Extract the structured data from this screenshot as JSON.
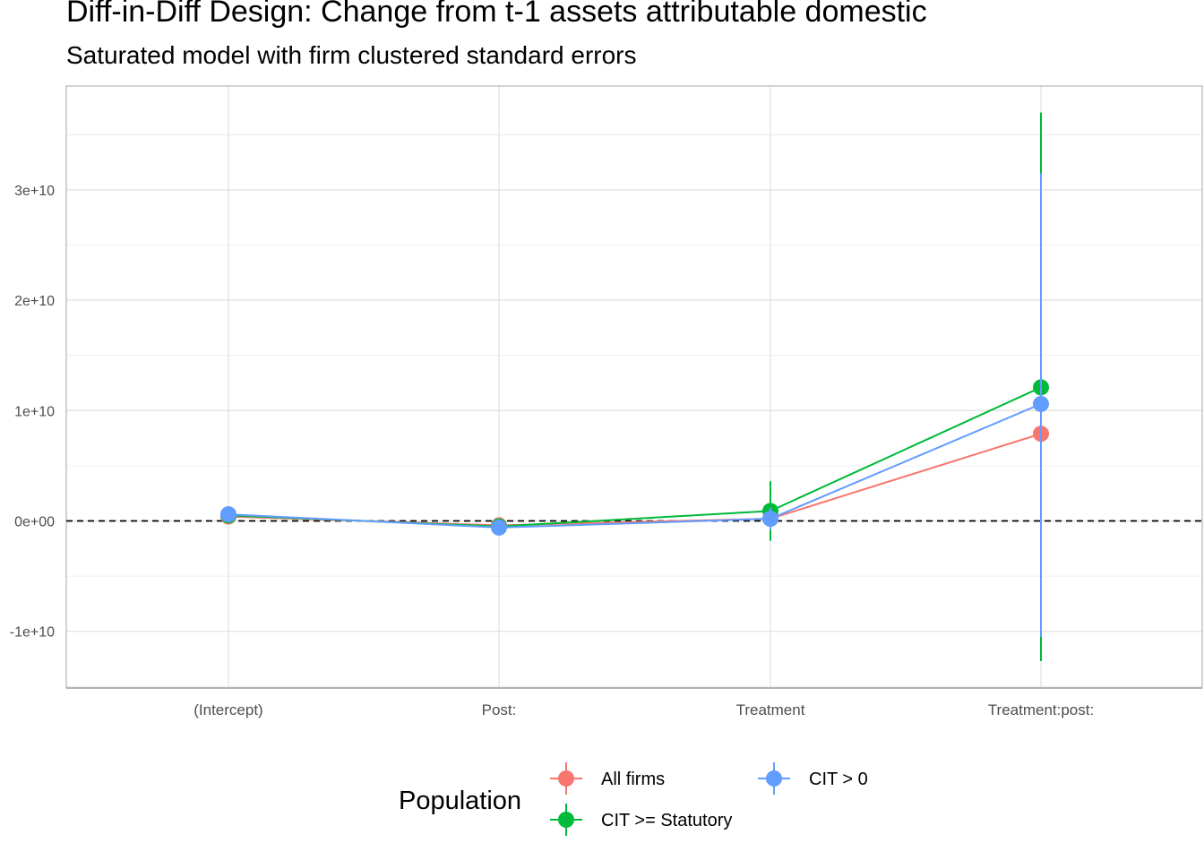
{
  "chart_data": {
    "type": "scatter",
    "title": "Diff-in-Diff Design: Change from t-1 assets attributable domestic",
    "subtitle": "Saturated model with firm clustered standard errors",
    "xlabel": "",
    "ylabel": "",
    "categories": [
      "(Intercept)",
      "Post:",
      "Treatment",
      "Treatment:post:"
    ],
    "y_ticks": [
      -10000000000,
      0,
      10000000000,
      20000000000,
      30000000000
    ],
    "y_tick_labels": [
      "-1e+10",
      "0e+00",
      "1e+10",
      "2e+10",
      "3e+10"
    ],
    "ylim": [
      -15000000000,
      39000000000
    ],
    "reference_line": 0,
    "grid": true,
    "legend": {
      "title": "Population",
      "position": "bottom"
    },
    "series": [
      {
        "name": "All firms",
        "color": "#F8766D",
        "values": [
          400000000,
          -400000000,
          200000000,
          7900000000
        ],
        "lower": [
          -100000000,
          -900000000,
          -700000000,
          -300000000
        ],
        "upper": [
          900000000,
          100000000,
          1100000000,
          16100000000
        ]
      },
      {
        "name": "CIT >= Statutory",
        "color": "#00BA38",
        "values": [
          500000000,
          -500000000,
          900000000,
          12100000000
        ],
        "lower": [
          -200000000,
          -1100000000,
          -1800000000,
          -12700000000
        ],
        "upper": [
          1200000000,
          100000000,
          3600000000,
          37000000000
        ]
      },
      {
        "name": "CIT > 0",
        "color": "#619CFF",
        "values": [
          600000000,
          -600000000,
          200000000,
          10600000000
        ],
        "lower": [
          -100000000,
          -1300000000,
          -800000000,
          -10500000000
        ],
        "upper": [
          1300000000,
          100000000,
          1200000000,
          31500000000
        ]
      }
    ]
  }
}
